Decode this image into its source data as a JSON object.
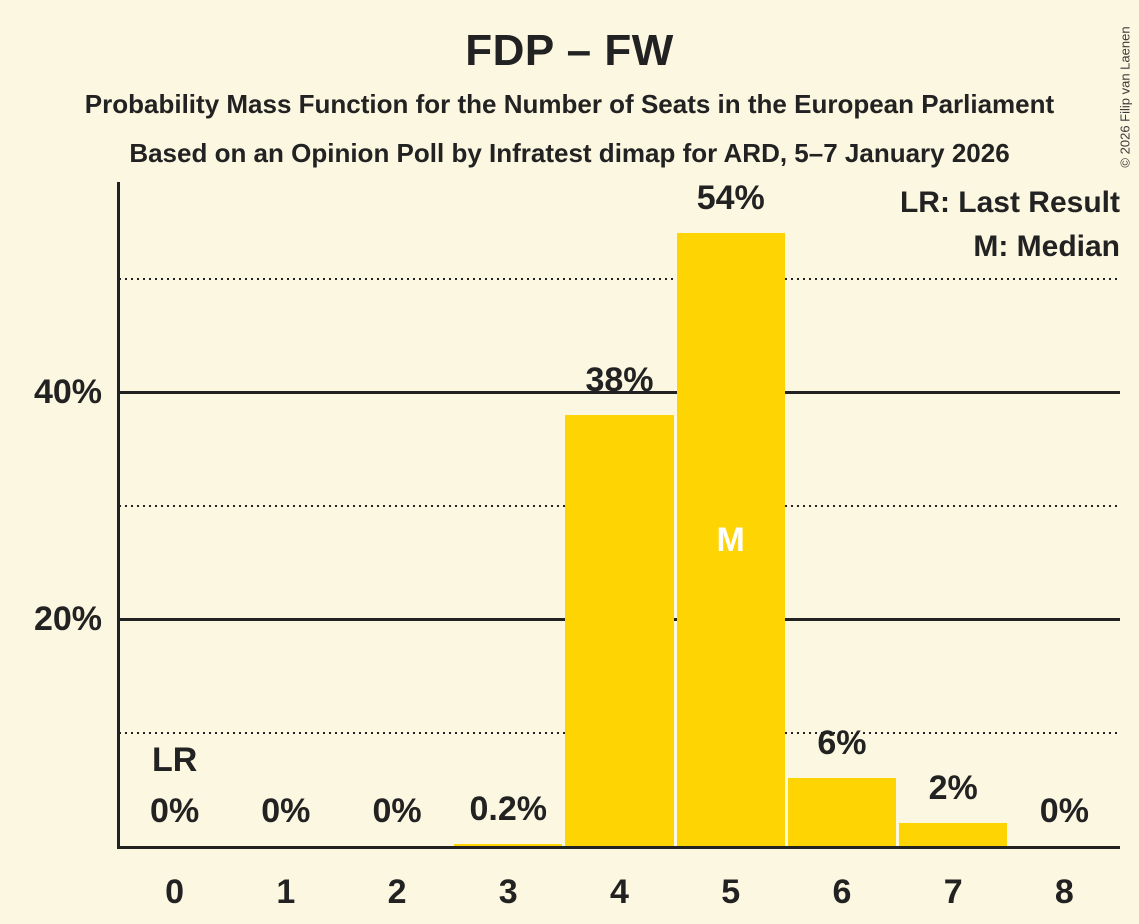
{
  "title": "FDP – FW",
  "subtitle1": "Probability Mass Function for the Number of Seats in the European Parliament",
  "subtitle2": "Based on an Opinion Poll by Infratest dimap for ARD, 5–7 January 2026",
  "legend": {
    "lr": "LR: Last Result",
    "m": "M: Median"
  },
  "copyright": "© 2026 Filip van Laenen",
  "colors": {
    "background": "#FCF7E1",
    "bar": "#FED402",
    "text": "#222222",
    "grid": "#222222",
    "median_text": "#FFFFFF"
  },
  "chart_data": {
    "type": "bar",
    "title": "FDP – FW",
    "categories": [
      "0",
      "1",
      "2",
      "3",
      "4",
      "5",
      "6",
      "7",
      "8"
    ],
    "values": [
      0,
      0,
      0,
      0.2,
      38,
      54,
      6,
      2,
      0
    ],
    "bar_labels": [
      "0%",
      "0%",
      "0%",
      "0.2%",
      "38%",
      "54%",
      "6%",
      "2%",
      "0%"
    ],
    "y_ticks": [
      {
        "value": 20,
        "label": "20%"
      },
      {
        "value": 40,
        "label": "40%"
      }
    ],
    "solid_gridlines": [
      20,
      40
    ],
    "dotted_gridlines": [
      10,
      30,
      50
    ],
    "ylim": [
      0,
      58.5
    ],
    "grid": "horizontal",
    "legend_position": "top-right",
    "annotations": {
      "last_result_seat": 0,
      "last_result_label": "LR",
      "median_seat": 5,
      "median_label": "M"
    }
  }
}
